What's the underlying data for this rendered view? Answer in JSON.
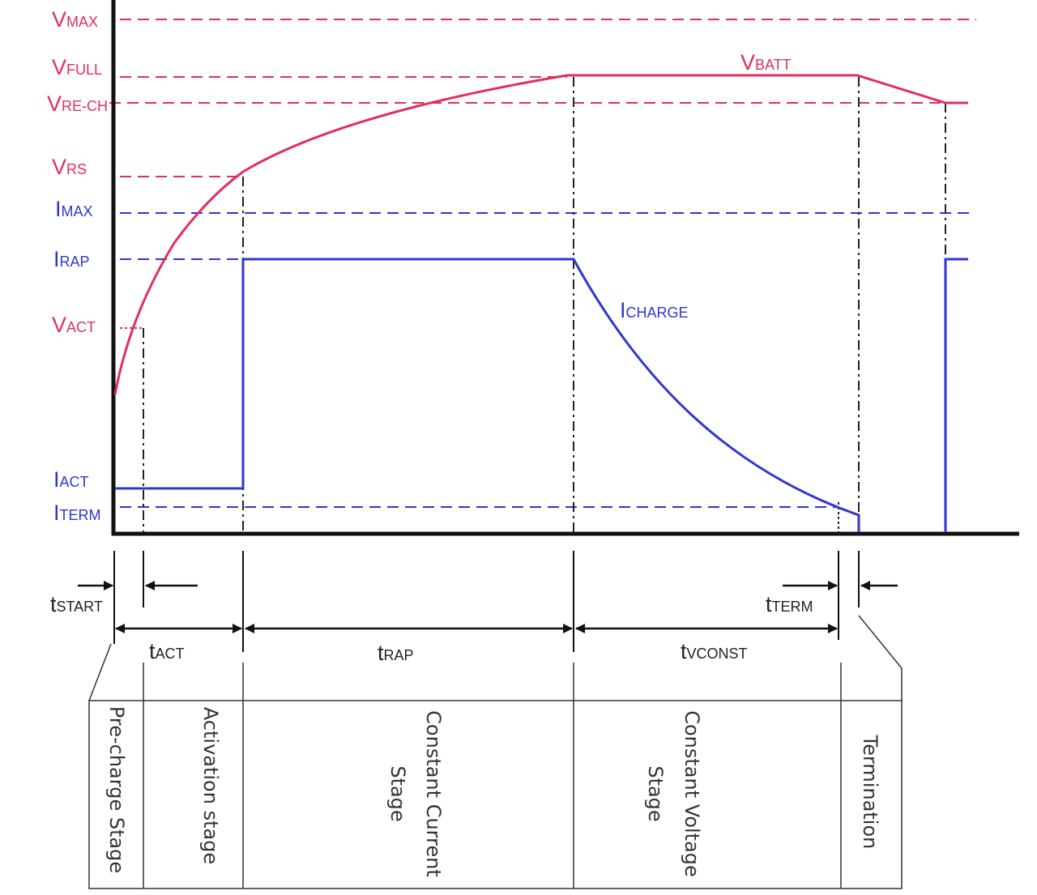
{
  "colors": {
    "voltage": "#e0305a",
    "current": "#2f37d0",
    "axis": "#111111",
    "guide": "#222222"
  },
  "voltage_levels": [
    {
      "key": "vmax",
      "main": "V",
      "sub": "MAX"
    },
    {
      "key": "vfull",
      "main": "V",
      "sub": "FULL"
    },
    {
      "key": "vrech",
      "main": "V",
      "sub": "RE-CH"
    },
    {
      "key": "vrs",
      "main": "V",
      "sub": "RS"
    },
    {
      "key": "vact",
      "main": "V",
      "sub": "ACT"
    }
  ],
  "current_levels": [
    {
      "key": "imax",
      "main": "I",
      "sub": "MAX"
    },
    {
      "key": "irap",
      "main": "I",
      "sub": "RAP"
    },
    {
      "key": "iact",
      "main": "I",
      "sub": "ACT"
    },
    {
      "key": "iterm",
      "main": "I",
      "sub": "TERM"
    }
  ],
  "curves": {
    "vbatt": {
      "main": "V",
      "sub": "BATT"
    },
    "icharge": {
      "main": "I",
      "sub": "CHARGE"
    }
  },
  "timings": [
    {
      "key": "tstart",
      "main": "t",
      "sub": "START"
    },
    {
      "key": "tact",
      "main": "t",
      "sub": "ACT"
    },
    {
      "key": "trap",
      "main": "t",
      "sub": "RAP"
    },
    {
      "key": "tvconst",
      "main": "t",
      "sub": "VCONST"
    },
    {
      "key": "tterm",
      "main": "t",
      "sub": "TERM"
    }
  ],
  "stages": [
    {
      "key": "precharge",
      "lines": [
        "Pre-charge Stage"
      ]
    },
    {
      "key": "activation",
      "lines": [
        "Activation stage"
      ]
    },
    {
      "key": "cc",
      "lines": [
        "Constant Current",
        "Stage"
      ]
    },
    {
      "key": "cv",
      "lines": [
        "Constant Voltage",
        "Stage"
      ]
    },
    {
      "key": "termination",
      "lines": [
        "Termination"
      ]
    }
  ]
}
